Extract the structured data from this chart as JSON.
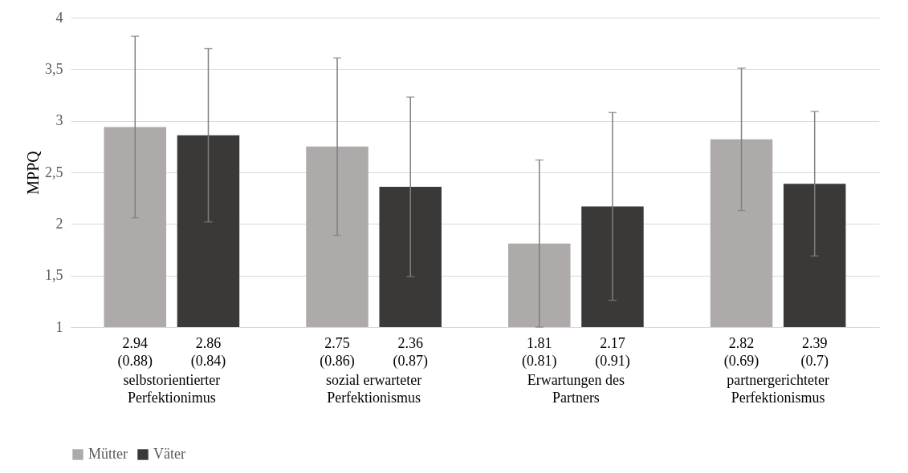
{
  "chart_data": {
    "type": "bar",
    "ylabel": "MPPQ",
    "categories": [
      "selbstorientierter\nPerfektionimus",
      "sozial erwarteter\nPerfektionismus",
      "Erwartungen des\nPartners",
      "partnergerichteter\nPerfektionismus"
    ],
    "series": [
      {
        "name": "Mütter",
        "color": "#aeaaaa",
        "values": [
          2.94,
          2.75,
          1.81,
          2.82
        ],
        "errors": [
          0.88,
          0.86,
          0.81,
          0.69
        ],
        "value_labels": [
          "2.94 (0.88)",
          "2.75 (0.86)",
          "1.81 (0.81)",
          "2.82 (0.69)"
        ]
      },
      {
        "name": "Väter",
        "color": "#3b3838",
        "values": [
          2.86,
          2.36,
          2.17,
          2.39
        ],
        "errors": [
          0.84,
          0.87,
          0.91,
          0.7
        ],
        "value_labels": [
          "2.86 (0.84)",
          "2.36 (0.87)",
          "2.17 (0.91)",
          "2.39 (0.7)"
        ]
      }
    ],
    "ylim": [
      1,
      4
    ],
    "yticks": [
      1,
      {
        "value": 1.5,
        "label": "1,5"
      },
      2,
      {
        "value": 2.5,
        "label": "2,5"
      },
      3,
      {
        "value": 3.5,
        "label": "3,5"
      },
      4
    ],
    "grid": "y",
    "legend": "bottom"
  }
}
